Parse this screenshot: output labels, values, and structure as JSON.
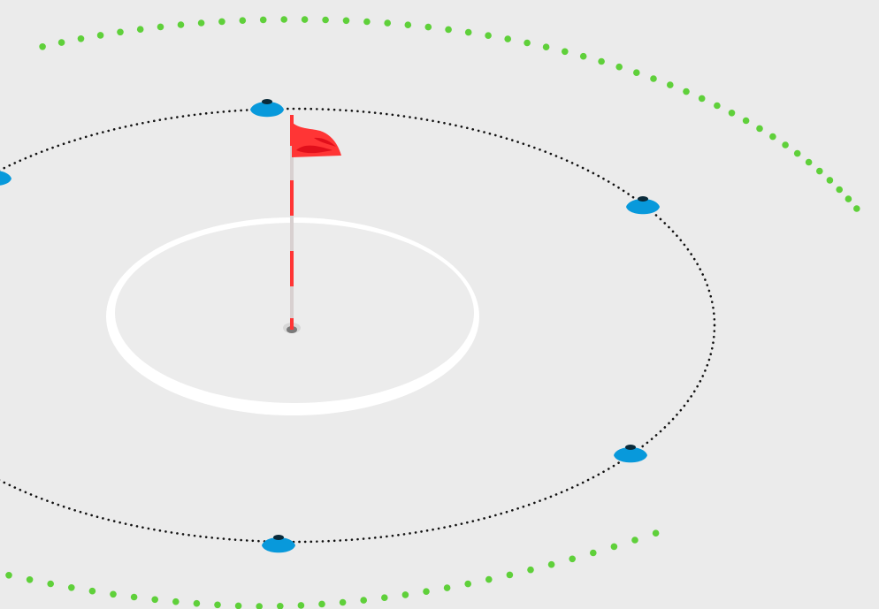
{
  "scene": {
    "background": "#ebebeb",
    "colors": {
      "green_dots": "#5fd03a",
      "circle_dots": "#111111",
      "cone": "#0899db",
      "cone_top": "#0a2a3a",
      "green_ring": "#ffffff",
      "flag": "#ff3535",
      "flag_shade": "#e10f1b",
      "pole_light": "#d8d0d0",
      "pole_red": "#ff3535",
      "hole": "#7a7a7a"
    },
    "icons": [
      "flag-icon",
      "cone-icon",
      "hole-icon"
    ]
  }
}
